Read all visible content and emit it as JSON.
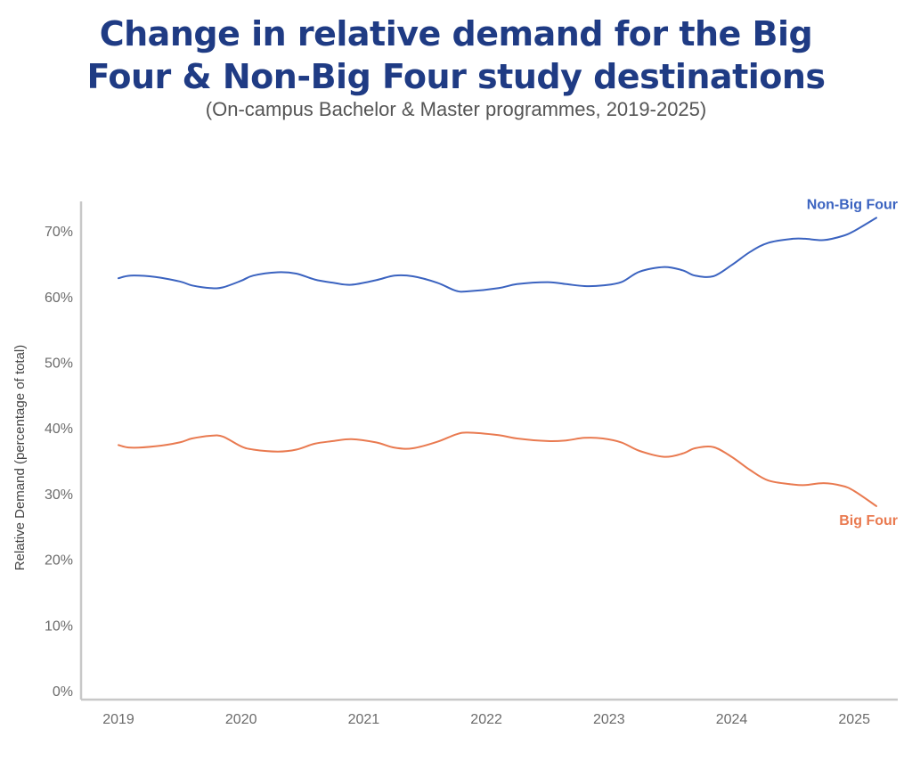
{
  "header": {
    "title": "Change in relative demand for the Big Four & Non-Big Four study destinations",
    "subtitle": "(On-campus Bachelor & Master programmes, 2019-2025)"
  },
  "chart_data": {
    "type": "line",
    "title": "Change in relative demand for the Big Four & Non-Big Four study destinations",
    "subtitle": "(On-campus Bachelor & Master programmes, 2019-2025)",
    "xlabel": "",
    "ylabel": "Relative Demand (percentage of total)",
    "xlim": [
      2019,
      2025.25
    ],
    "ylim": [
      0,
      72
    ],
    "x_ticks": [
      2019,
      2020,
      2021,
      2022,
      2023,
      2024,
      2025
    ],
    "x_tick_labels": [
      "2019",
      "2020",
      "2021",
      "2022",
      "2023",
      "2024",
      "2025"
    ],
    "y_ticks": [
      0,
      10,
      20,
      30,
      40,
      50,
      60,
      70
    ],
    "y_tick_labels": [
      "0%",
      "10%",
      "20%",
      "30%",
      "40%",
      "50%",
      "60%",
      "70%"
    ],
    "grid": false,
    "legend": "inline labels at line ends (right)",
    "x": [
      2019.0,
      2019.1,
      2019.3,
      2019.5,
      2019.6,
      2019.75,
      2019.85,
      2020.0,
      2020.1,
      2020.3,
      2020.45,
      2020.6,
      2020.75,
      2020.9,
      2021.1,
      2021.25,
      2021.4,
      2021.6,
      2021.75,
      2021.85,
      2022.1,
      2022.25,
      2022.5,
      2022.65,
      2022.8,
      2022.95,
      2023.1,
      2023.25,
      2023.45,
      2023.6,
      2023.7,
      2023.85,
      2024.0,
      2024.15,
      2024.3,
      2024.5,
      2024.6,
      2024.75,
      2024.9,
      2025.0,
      2025.18
    ],
    "series": [
      {
        "name": "Non-Big Four",
        "color": "#3b63c0",
        "values": [
          62.8,
          63.2,
          63.0,
          62.3,
          61.7,
          61.3,
          61.4,
          62.4,
          63.2,
          63.7,
          63.5,
          62.6,
          62.1,
          61.8,
          62.5,
          63.2,
          63.1,
          62.1,
          60.9,
          60.8,
          61.3,
          61.9,
          62.2,
          61.9,
          61.6,
          61.7,
          62.2,
          63.8,
          64.5,
          64.0,
          63.2,
          63.1,
          64.8,
          66.8,
          68.2,
          68.8,
          68.8,
          68.6,
          69.2,
          70.0,
          72.0
        ]
      },
      {
        "name": "Big Four",
        "color": "#e97a50",
        "values": [
          37.4,
          37.0,
          37.2,
          37.8,
          38.4,
          38.8,
          38.7,
          37.2,
          36.7,
          36.4,
          36.7,
          37.6,
          38.0,
          38.3,
          37.8,
          37.0,
          36.9,
          37.9,
          39.0,
          39.3,
          38.9,
          38.4,
          38.0,
          38.1,
          38.5,
          38.4,
          37.8,
          36.5,
          35.6,
          36.1,
          36.9,
          37.1,
          35.6,
          33.6,
          32.0,
          31.4,
          31.3,
          31.6,
          31.2,
          30.4,
          28.1
        ]
      }
    ]
  },
  "colors": {
    "title": "#1f3b84",
    "axis": "#c8c8c8",
    "tick_text": "#6b6b6b"
  }
}
